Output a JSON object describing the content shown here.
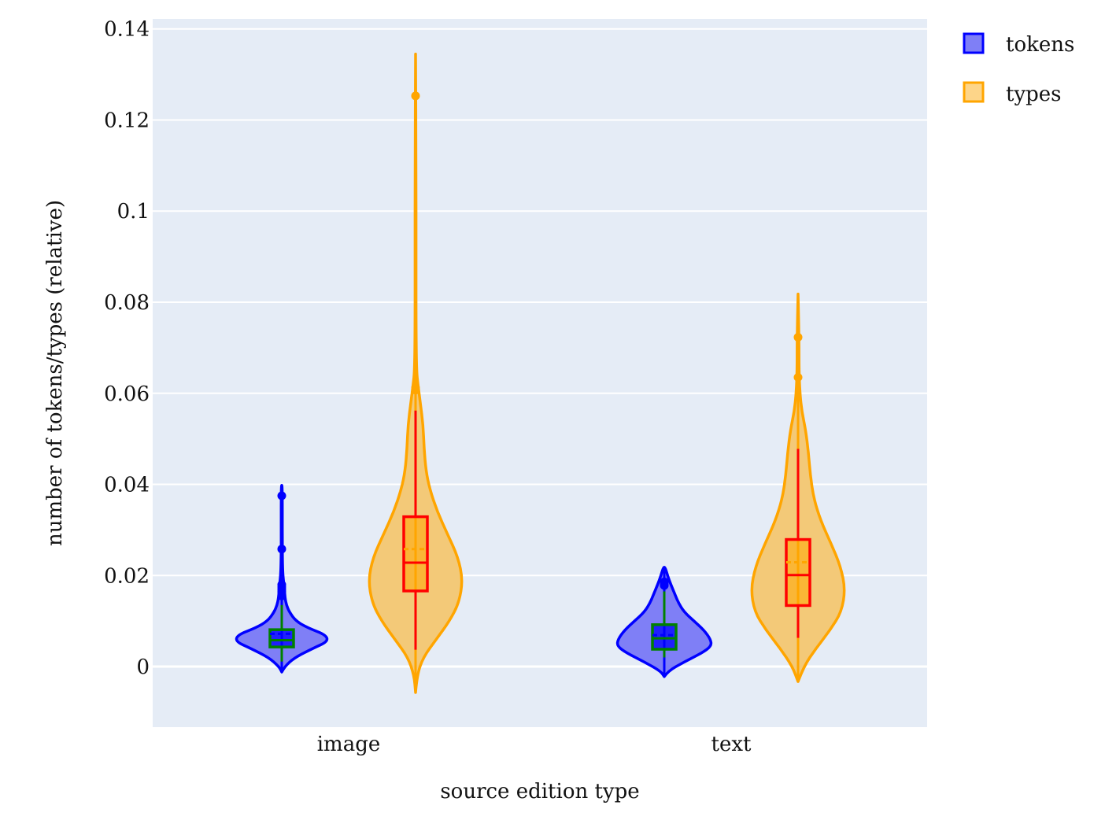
{
  "chart_data": {
    "type": "violin",
    "xlabel": "source edition type",
    "ylabel": "number of tokens/types (relative)",
    "categories": [
      "image",
      "text"
    ],
    "y_ticks": [
      0,
      0.02,
      0.04,
      0.06,
      0.08,
      0.1,
      0.12,
      0.14
    ],
    "y_tick_labels": [
      "0",
      "0.02",
      "0.04",
      "0.06",
      "0.08",
      "0.1",
      "0.12",
      "0.14"
    ],
    "ylim": [
      -0.0133,
      0.1422
    ],
    "grid": true,
    "legend_position": "top-right, outside plot",
    "colors": {
      "plot_bg": "#e5ecf6",
      "tokens_line": "#0000ff",
      "tokens_fill": "#7f7ff6",
      "tokens_box_line": "#008000",
      "types_line": "#ffa500",
      "types_fill": "#f3c978",
      "types_box_line": "#ff0000"
    },
    "series": [
      {
        "name": "tokens",
        "groups": [
          {
            "category": "image",
            "min": 0.0011,
            "q1": 0.0043,
            "median": 0.0058,
            "q3": 0.0081,
            "max": 0.0135,
            "mean": 0.0072,
            "whisker_top": 0.0135,
            "kde_min": -0.0012,
            "kde_max": 0.0398,
            "outliers": [
              0.0155,
              0.016,
              0.0165,
              0.017,
              0.0175,
              0.018,
              0.0258,
              0.0375
            ],
            "density": [
              [
                -0.0012,
                0.0
              ],
              [
                0.0,
                0.06
              ],
              [
                0.002,
                0.28
              ],
              [
                0.004,
                0.66
              ],
              [
                0.0055,
                0.98
              ],
              [
                0.007,
                0.93
              ],
              [
                0.0085,
                0.55
              ],
              [
                0.01,
                0.3
              ],
              [
                0.012,
                0.16
              ],
              [
                0.0135,
                0.1
              ],
              [
                0.015,
                0.07
              ],
              [
                0.017,
                0.055
              ],
              [
                0.019,
                0.035
              ],
              [
                0.021,
                0.02
              ],
              [
                0.024,
                0.013
              ],
              [
                0.028,
                0.012
              ],
              [
                0.032,
                0.012
              ],
              [
                0.036,
                0.012
              ],
              [
                0.0398,
                0.008
              ]
            ]
          },
          {
            "category": "text",
            "min": 0.002,
            "q1": 0.0038,
            "median": 0.0062,
            "q3": 0.0092,
            "max": 0.0165,
            "mean": 0.0069,
            "whisker_top": 0.0165,
            "kde_min": -0.0022,
            "kde_max": 0.0218,
            "outliers": [
              0.0178,
              0.0182,
              0.0186
            ],
            "density": [
              [
                -0.0022,
                0.0
              ],
              [
                -0.001,
                0.08
              ],
              [
                0.001,
                0.42
              ],
              [
                0.003,
                0.8
              ],
              [
                0.0045,
                1.0
              ],
              [
                0.006,
                0.98
              ],
              [
                0.008,
                0.84
              ],
              [
                0.01,
                0.63
              ],
              [
                0.012,
                0.42
              ],
              [
                0.014,
                0.3
              ],
              [
                0.016,
                0.22
              ],
              [
                0.018,
                0.14
              ],
              [
                0.02,
                0.07
              ],
              [
                0.0218,
                0.02
              ]
            ]
          }
        ]
      },
      {
        "name": "types",
        "groups": [
          {
            "category": "image",
            "min": 0.0037,
            "q1": 0.0166,
            "median": 0.0228,
            "q3": 0.0329,
            "max": 0.0562,
            "mean": 0.0258,
            "whisker_top": 0.0562,
            "kde_min": -0.0057,
            "kde_max": 0.1345,
            "outliers": [
              0.0607,
              0.0612,
              0.1253
            ],
            "density": [
              [
                -0.0057,
                0.0
              ],
              [
                -0.002,
                0.03
              ],
              [
                0.002,
                0.16
              ],
              [
                0.006,
                0.44
              ],
              [
                0.01,
                0.72
              ],
              [
                0.014,
                0.92
              ],
              [
                0.019,
                1.0
              ],
              [
                0.024,
                0.9
              ],
              [
                0.029,
                0.68
              ],
              [
                0.034,
                0.46
              ],
              [
                0.039,
                0.3
              ],
              [
                0.043,
                0.22
              ],
              [
                0.048,
                0.18
              ],
              [
                0.053,
                0.16
              ],
              [
                0.058,
                0.1
              ],
              [
                0.062,
                0.05
              ],
              [
                0.065,
                0.02
              ],
              [
                0.075,
                0.01
              ],
              [
                0.09,
                0.01
              ],
              [
                0.11,
                0.01
              ],
              [
                0.1345,
                0.0
              ]
            ]
          },
          {
            "category": "text",
            "min": 0.0063,
            "q1": 0.0134,
            "median": 0.0201,
            "q3": 0.0279,
            "max": 0.0478,
            "mean": 0.0229,
            "whisker_top": 0.0478,
            "kde_min": -0.0033,
            "kde_max": 0.0818,
            "outliers": [
              0.0635,
              0.0723
            ],
            "density": [
              [
                -0.0033,
                0.0
              ],
              [
                0.0,
                0.12
              ],
              [
                0.004,
                0.38
              ],
              [
                0.008,
                0.68
              ],
              [
                0.012,
                0.92
              ],
              [
                0.017,
                1.0
              ],
              [
                0.022,
                0.9
              ],
              [
                0.027,
                0.7
              ],
              [
                0.032,
                0.48
              ],
              [
                0.037,
                0.33
              ],
              [
                0.042,
                0.26
              ],
              [
                0.047,
                0.22
              ],
              [
                0.052,
                0.16
              ],
              [
                0.056,
                0.08
              ],
              [
                0.06,
                0.04
              ],
              [
                0.065,
                0.02
              ],
              [
                0.072,
                0.02
              ],
              [
                0.0818,
                0.0
              ]
            ]
          }
        ]
      }
    ]
  }
}
